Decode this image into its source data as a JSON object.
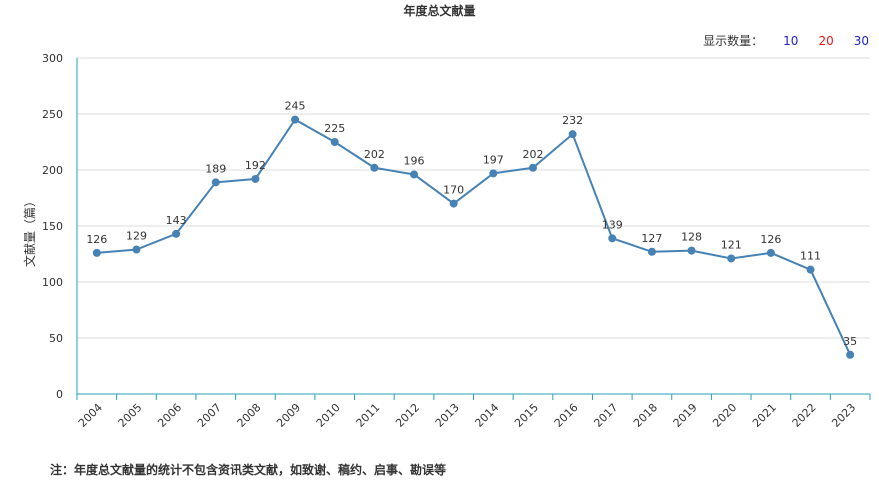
{
  "title": "年度总文献量",
  "count_selector": {
    "label": "显示数量：",
    "options": [
      {
        "label": "10",
        "color": "#1f1fcc"
      },
      {
        "label": "20",
        "color": "#e01919"
      },
      {
        "label": "30",
        "color": "#1f1fcc"
      }
    ]
  },
  "note": "注：年度总文献量的统计不包含资讯类文献，如致谢、稿约、启事、勘误等",
  "chart_data": {
    "type": "line",
    "title": "年度总文献量",
    "xlabel": "",
    "ylabel": "文献量（篇）",
    "ylim": [
      0,
      300
    ],
    "yticks": [
      0,
      50,
      100,
      150,
      200,
      250,
      300
    ],
    "grid": true,
    "line_color": "#4682b4",
    "categories": [
      "2004",
      "2005",
      "2006",
      "2007",
      "2008",
      "2009",
      "2010",
      "2011",
      "2012",
      "2013",
      "2014",
      "2015",
      "2016",
      "2017",
      "2018",
      "2019",
      "2020",
      "2021",
      "2022",
      "2023"
    ],
    "values": [
      126,
      129,
      143,
      189,
      192,
      245,
      225,
      202,
      196,
      170,
      197,
      202,
      232,
      139,
      127,
      128,
      121,
      126,
      111,
      35
    ]
  }
}
